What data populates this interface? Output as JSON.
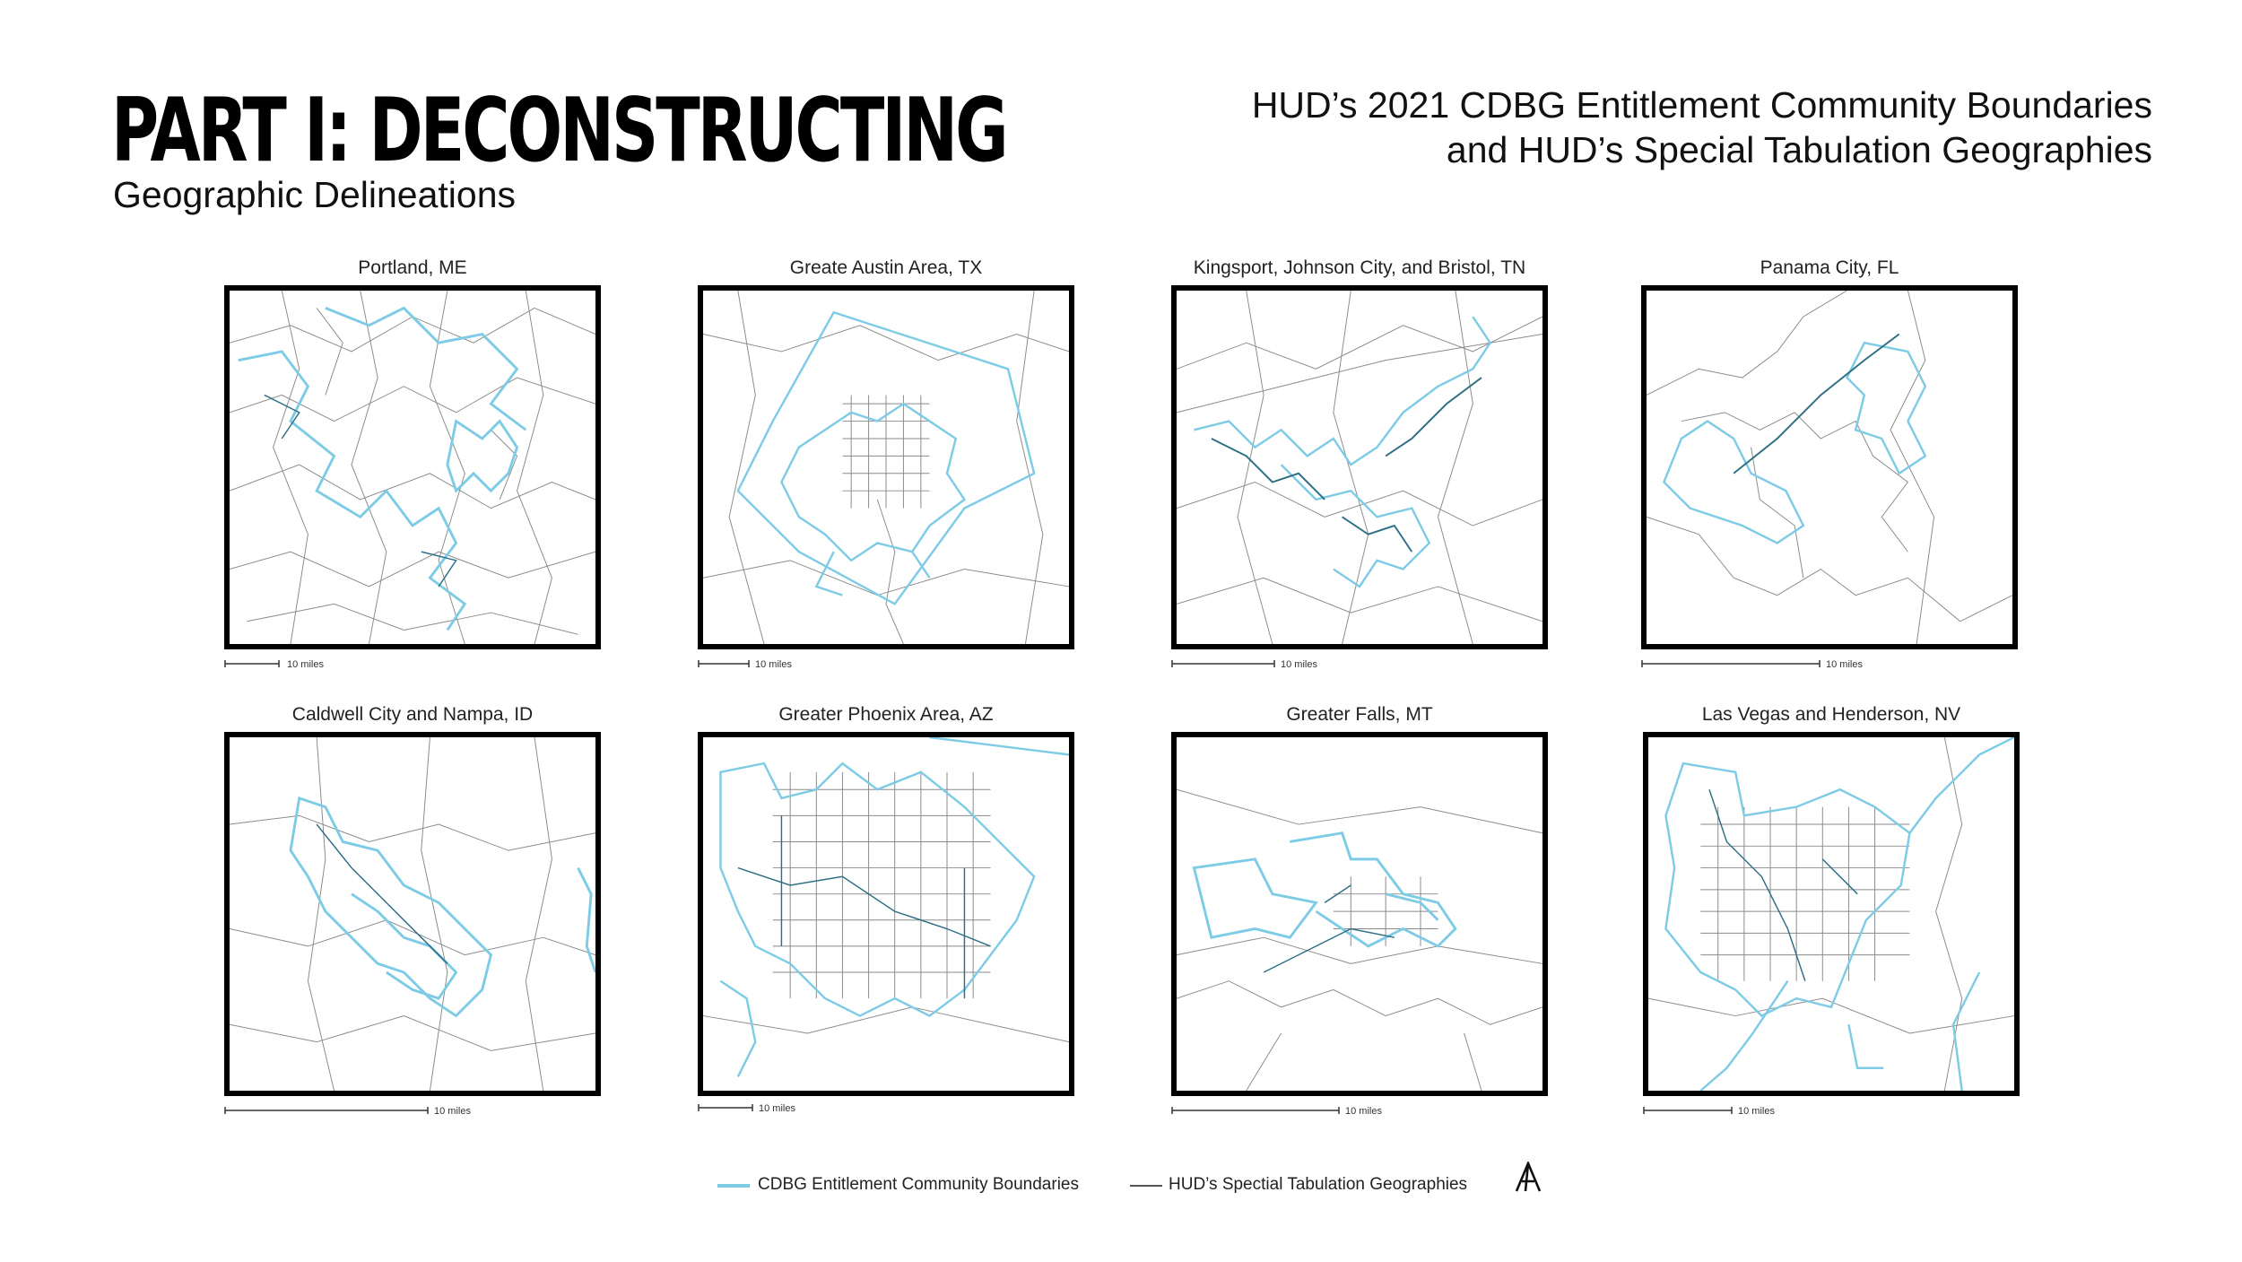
{
  "header": {
    "title": "PART I: DECONSTRUCTING",
    "subtitle": "Geographic Delineations",
    "right_line1": "HUD’s 2021 CDBG Entitlement Community Boundaries",
    "right_line2": "and HUD’s Special Tabulation Geographies"
  },
  "colors": {
    "cdbg_boundary": "#7ecbe6",
    "cdbg_boundary_dark": "#2e6f86",
    "tabulation_geography": "#8a8a8a",
    "frame": "#000000"
  },
  "maps": [
    {
      "label": "Portland, ME",
      "scale_label": "10 miles"
    },
    {
      "label": "Greate Austin Area, TX",
      "scale_label": "10 miles"
    },
    {
      "label": "Kingsport, Johnson City, and Bristol, TN",
      "scale_label": "10 miles"
    },
    {
      "label": "Panama City, FL",
      "scale_label": "10 miles"
    },
    {
      "label": "Caldwell City and Nampa, ID",
      "scale_label": "10 miles"
    },
    {
      "label": "Greater Phoenix Area, AZ",
      "scale_label": "10 miles"
    },
    {
      "label": "Greater Falls, MT",
      "scale_label": "10 miles"
    },
    {
      "label": "Las Vegas and Henderson, NV",
      "scale_label": "10 miles"
    }
  ],
  "legend": {
    "cdbg_label": "CDBG Entitlement Community Boundaries",
    "tabulation_label": "HUD’s Spectial Tabulation Geographies"
  },
  "logo": {
    "icon": "a-monogram-logo"
  }
}
